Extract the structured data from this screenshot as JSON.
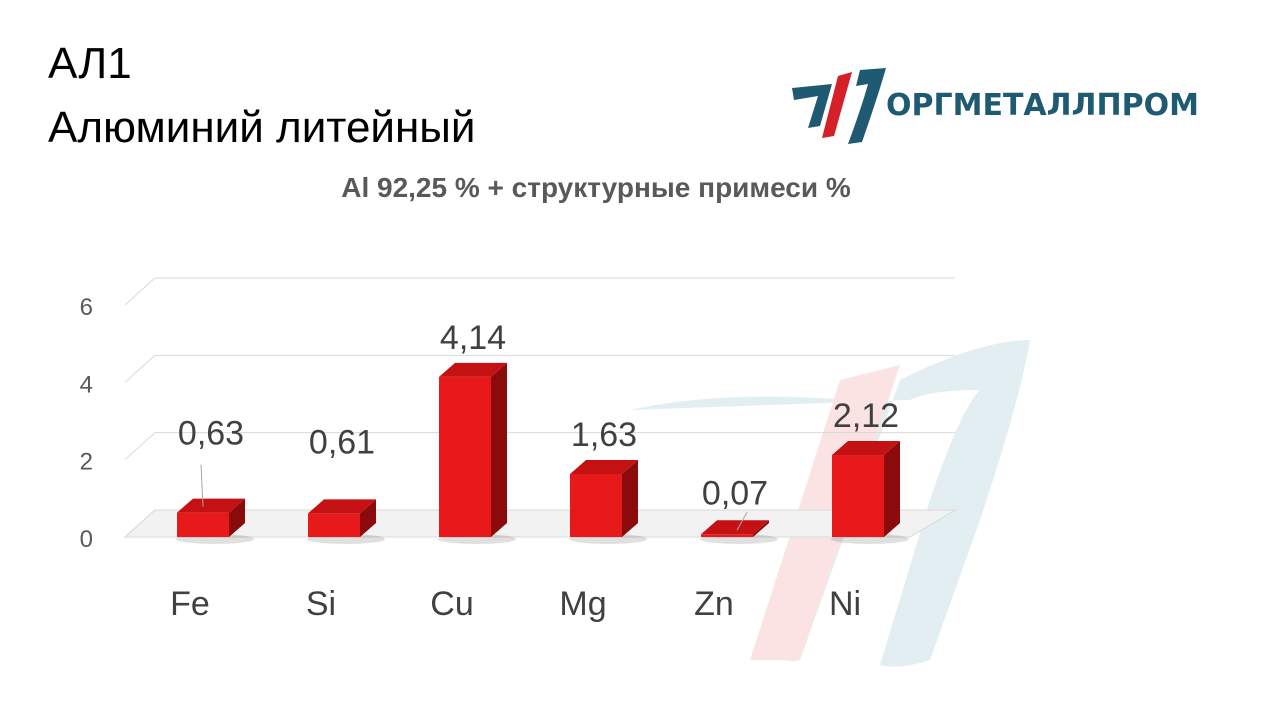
{
  "header": {
    "title_line1": "АЛ1",
    "title_line2": "Алюминий литейный",
    "subtitle": "Al 92,25 % + структурные примеси %"
  },
  "logo": {
    "text": "ОРГМЕТАЛЛПРОМ"
  },
  "colors": {
    "bar_front": "#e8191b",
    "bar_top": "#c41214",
    "bar_side": "#8b0a0c",
    "logo_blue": "#1f5a73",
    "logo_red": "#d62027",
    "watermark_blue": "#e3eef2",
    "watermark_red": "#fbe3e3"
  },
  "chart_data": {
    "type": "bar",
    "categories": [
      "Fe",
      "Si",
      "Cu",
      "Mg",
      "Zn",
      "Ni"
    ],
    "values": [
      0.63,
      0.61,
      4.14,
      1.63,
      0.07,
      2.12
    ],
    "data_labels": [
      "0,63",
      "0,61",
      "4,14",
      "1,63",
      "0,07",
      "2,12"
    ],
    "title": "Al 92,25 % + структурные примеси %",
    "ylim": [
      0,
      6
    ],
    "yticks": [
      0,
      2,
      4,
      6
    ],
    "grid": true,
    "style": "3d"
  }
}
